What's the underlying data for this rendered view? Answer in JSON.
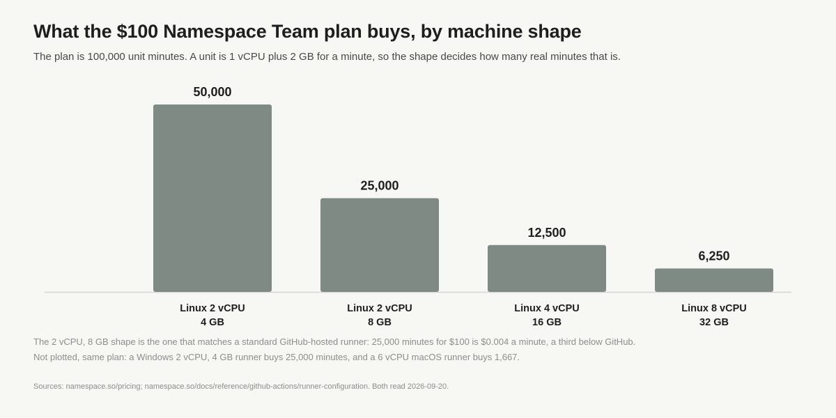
{
  "chart_data": {
    "type": "bar",
    "title": "What the $100 Namespace Team plan buys, by machine shape",
    "subtitle": "The plan is 100,000 unit minutes. A unit is 1 vCPU plus 2 GB for a minute, so the shape decides how many real minutes that is.",
    "categories": [
      [
        "Linux 2 vCPU",
        "4 GB"
      ],
      [
        "Linux 2 vCPU",
        "8 GB"
      ],
      [
        "Linux 4 vCPU",
        "16 GB"
      ],
      [
        "Linux 8 vCPU",
        "32 GB"
      ]
    ],
    "values": [
      50000,
      25000,
      12500,
      6250
    ],
    "value_labels": [
      "50,000",
      "25,000",
      "12,500",
      "6,250"
    ],
    "xlabel": "",
    "ylabel": "",
    "ylim": [
      0,
      50000
    ],
    "grid": false,
    "legend": "none",
    "colors": {
      "bar": "#7f8a85",
      "baseline": "#d4d6d2",
      "background": "#f7f7f3"
    }
  },
  "notes": [
    "The 2 vCPU, 8 GB shape is the one that matches a standard GitHub-hosted runner: 25,000 minutes for $100 is $0.004 a minute, a third below GitHub.",
    "Not plotted, same plan: a Windows 2 vCPU, 4 GB runner buys 25,000 minutes, and a 6 vCPU macOS runner buys 1,667."
  ],
  "source": "Sources: namespace.so/pricing; namespace.so/docs/reference/github-actions/runner-configuration. Both read 2026-09-20."
}
